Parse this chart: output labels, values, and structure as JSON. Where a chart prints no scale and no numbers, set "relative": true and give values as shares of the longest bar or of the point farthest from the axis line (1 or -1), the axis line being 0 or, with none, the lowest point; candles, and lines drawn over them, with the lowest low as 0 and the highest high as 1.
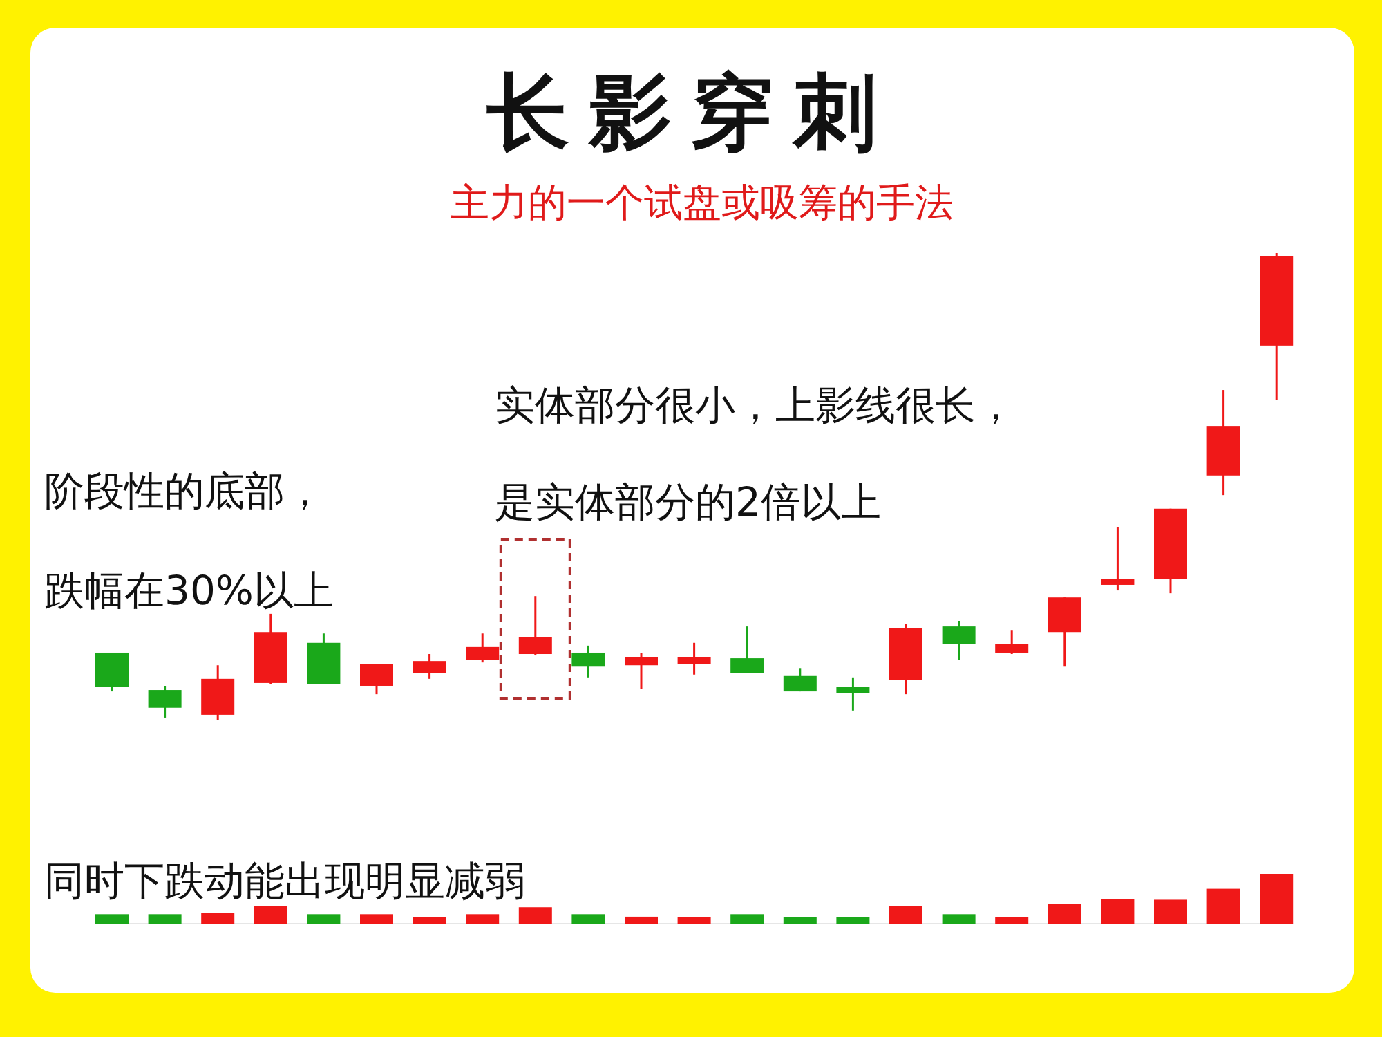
{
  "chart_data": [
    {
      "type": "candlestick",
      "title": "长影穿刺",
      "subtitle": "主力的一个试盘或吸筹的手法",
      "relative": true,
      "categories": [
        null,
        null,
        null,
        null,
        null,
        null,
        null,
        null,
        null,
        null,
        null,
        null,
        null,
        null,
        null,
        null,
        null,
        null,
        null,
        null,
        null,
        null,
        null
      ],
      "ohlc": [
        [
          0.145,
          0.145,
          0.062,
          0.071
        ],
        [
          0.065,
          0.074,
          0.006,
          0.027
        ],
        [
          0.012,
          0.118,
          0,
          0.089
        ],
        [
          0.08,
          0.228,
          0.077,
          0.189
        ],
        [
          0.166,
          0.186,
          0.077,
          0.077
        ],
        [
          0.074,
          0.121,
          0.056,
          0.121
        ],
        [
          0.101,
          0.142,
          0.089,
          0.127
        ],
        [
          0.13,
          0.186,
          0.124,
          0.157
        ],
        [
          0.142,
          0.266,
          0.139,
          0.178
        ],
        [
          0.145,
          0.16,
          0.092,
          0.115
        ],
        [
          0.118,
          0.145,
          0.068,
          0.136
        ],
        [
          0.121,
          0.166,
          0.098,
          0.136
        ],
        [
          0.133,
          0.201,
          0.101,
          0.101
        ],
        [
          0.095,
          0.112,
          0.062,
          0.062
        ],
        [
          0.071,
          0.092,
          0.021,
          0.059
        ],
        [
          0.086,
          0.207,
          0.056,
          0.198
        ],
        [
          0.201,
          0.213,
          0.13,
          0.163
        ],
        [
          0.145,
          0.192,
          0.142,
          0.163
        ],
        [
          0.189,
          0.263,
          0.115,
          0.263
        ],
        [
          0.29,
          0.414,
          0.278,
          0.302
        ],
        [
          0.302,
          0.453,
          0.272,
          0.453
        ],
        [
          0.524,
          0.707,
          0.482,
          0.63
        ],
        [
          0.802,
          1,
          0.686,
          0.994
        ]
      ],
      "colors": [
        "#1aa81a",
        "#1aa81a",
        "#f01818",
        "#f01818",
        "#1aa81a",
        "#f01818",
        "#f01818",
        "#f01818",
        "#f01818",
        "#1aa81a",
        "#f01818",
        "#f01818",
        "#1aa81a",
        "#1aa81a",
        "#1aa81a",
        "#f01818",
        "#1aa81a",
        "#f01818",
        "#f01818",
        "#f01818",
        "#f01818",
        "#f01818",
        "#f01818"
      ],
      "annotations": [
        "阶段性的底部，",
        "跌幅在30%以上",
        "实体部分很小，上影线很长，",
        "是实体部分的2倍以上"
      ]
    },
    {
      "type": "bar",
      "relative": true,
      "categories": [
        null,
        null,
        null,
        null,
        null,
        null,
        null,
        null,
        null,
        null,
        null,
        null,
        null,
        null,
        null,
        null,
        null,
        null,
        null,
        null,
        null,
        null,
        null
      ],
      "values": [
        0.19,
        0.19,
        0.21,
        0.35,
        0.19,
        0.19,
        0.13,
        0.19,
        0.33,
        0.19,
        0.14,
        0.13,
        0.19,
        0.13,
        0.13,
        0.35,
        0.19,
        0.13,
        0.4,
        0.49,
        0.48,
        0.7,
        1
      ],
      "colors": [
        "#1aa81a",
        "#1aa81a",
        "#f01818",
        "#f01818",
        "#1aa81a",
        "#f01818",
        "#f01818",
        "#f01818",
        "#f01818",
        "#1aa81a",
        "#f01818",
        "#f01818",
        "#1aa81a",
        "#1aa81a",
        "#1aa81a",
        "#f01818",
        "#1aa81a",
        "#f01818",
        "#f01818",
        "#f01818",
        "#f01818",
        "#f01818",
        "#f01818"
      ],
      "annotations": [
        "同时下跌动能出现明显减弱"
      ]
    }
  ]
}
